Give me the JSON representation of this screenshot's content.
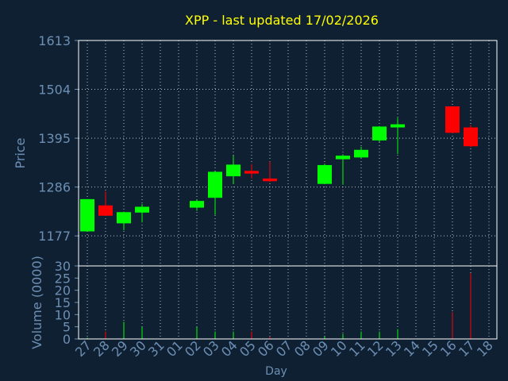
{
  "chart_data": {
    "type": "candlestick",
    "title": "XPP - last updated 17/02/2026",
    "xlabel": "Day",
    "ylabel": "Price",
    "volume_label": "Volume (0000)",
    "y_ticks": [
      1177,
      1286,
      1395,
      1504,
      1613
    ],
    "ylim": [
      1110,
      1613
    ],
    "volume_ticks": [
      0,
      5,
      10,
      15,
      20,
      25,
      30
    ],
    "volume_ylim": [
      0,
      30
    ],
    "x_ticks": [
      "27",
      "28",
      "29",
      "30",
      "31",
      "01",
      "02",
      "03",
      "04",
      "05",
      "06",
      "07",
      "08",
      "09",
      "10",
      "11",
      "12",
      "13",
      "14",
      "15",
      "16",
      "17",
      "18"
    ],
    "grid": true,
    "colors": {
      "background": "#0f2033",
      "plot_border": "#ffffff",
      "grid": "#ffffff",
      "up": "#00ff00",
      "down": "#ff0000",
      "title": "#ffff00",
      "axis_text": "#6d8fb3"
    },
    "candles": [
      {
        "x": "27",
        "open": 1187,
        "high": 1259,
        "low": 1187,
        "close": 1259,
        "volume": 0.5
      },
      {
        "x": "28",
        "open": 1245,
        "high": 1276,
        "low": 1222,
        "close": 1222,
        "volume": 3
      },
      {
        "x": "29",
        "open": 1205,
        "high": 1231,
        "low": 1190,
        "close": 1230,
        "volume": 7
      },
      {
        "x": "30",
        "open": 1229,
        "high": 1248,
        "low": 1207,
        "close": 1242,
        "volume": 5
      },
      {
        "x": "02",
        "open": 1240,
        "high": 1258,
        "low": 1233,
        "close": 1255,
        "volume": 5
      },
      {
        "x": "03",
        "open": 1262,
        "high": 1321,
        "low": 1224,
        "close": 1320,
        "volume": 3
      },
      {
        "x": "04",
        "open": 1310,
        "high": 1356,
        "low": 1293,
        "close": 1336,
        "volume": 3
      },
      {
        "x": "05",
        "open": 1322,
        "high": 1337,
        "low": 1305,
        "close": 1316,
        "volume": 3
      },
      {
        "x": "06",
        "open": 1305,
        "high": 1343,
        "low": 1297,
        "close": 1299,
        "volume": 1
      },
      {
        "x": "09",
        "open": 1293,
        "high": 1338,
        "low": 1293,
        "close": 1335,
        "volume": 1
      },
      {
        "x": "10",
        "open": 1348,
        "high": 1359,
        "low": 1291,
        "close": 1356,
        "volume": 2
      },
      {
        "x": "11",
        "open": 1352,
        "high": 1376,
        "low": 1350,
        "close": 1369,
        "volume": 3
      },
      {
        "x": "12",
        "open": 1390,
        "high": 1421,
        "low": 1386,
        "close": 1421,
        "volume": 3
      },
      {
        "x": "13",
        "open": 1419,
        "high": 1440,
        "low": 1360,
        "close": 1426,
        "volume": 4
      },
      {
        "x": "16",
        "open": 1466,
        "high": 1466,
        "low": 1406,
        "close": 1407,
        "volume": 11
      },
      {
        "x": "17",
        "open": 1419,
        "high": 1424,
        "low": 1375,
        "close": 1377,
        "volume": 27
      }
    ]
  }
}
